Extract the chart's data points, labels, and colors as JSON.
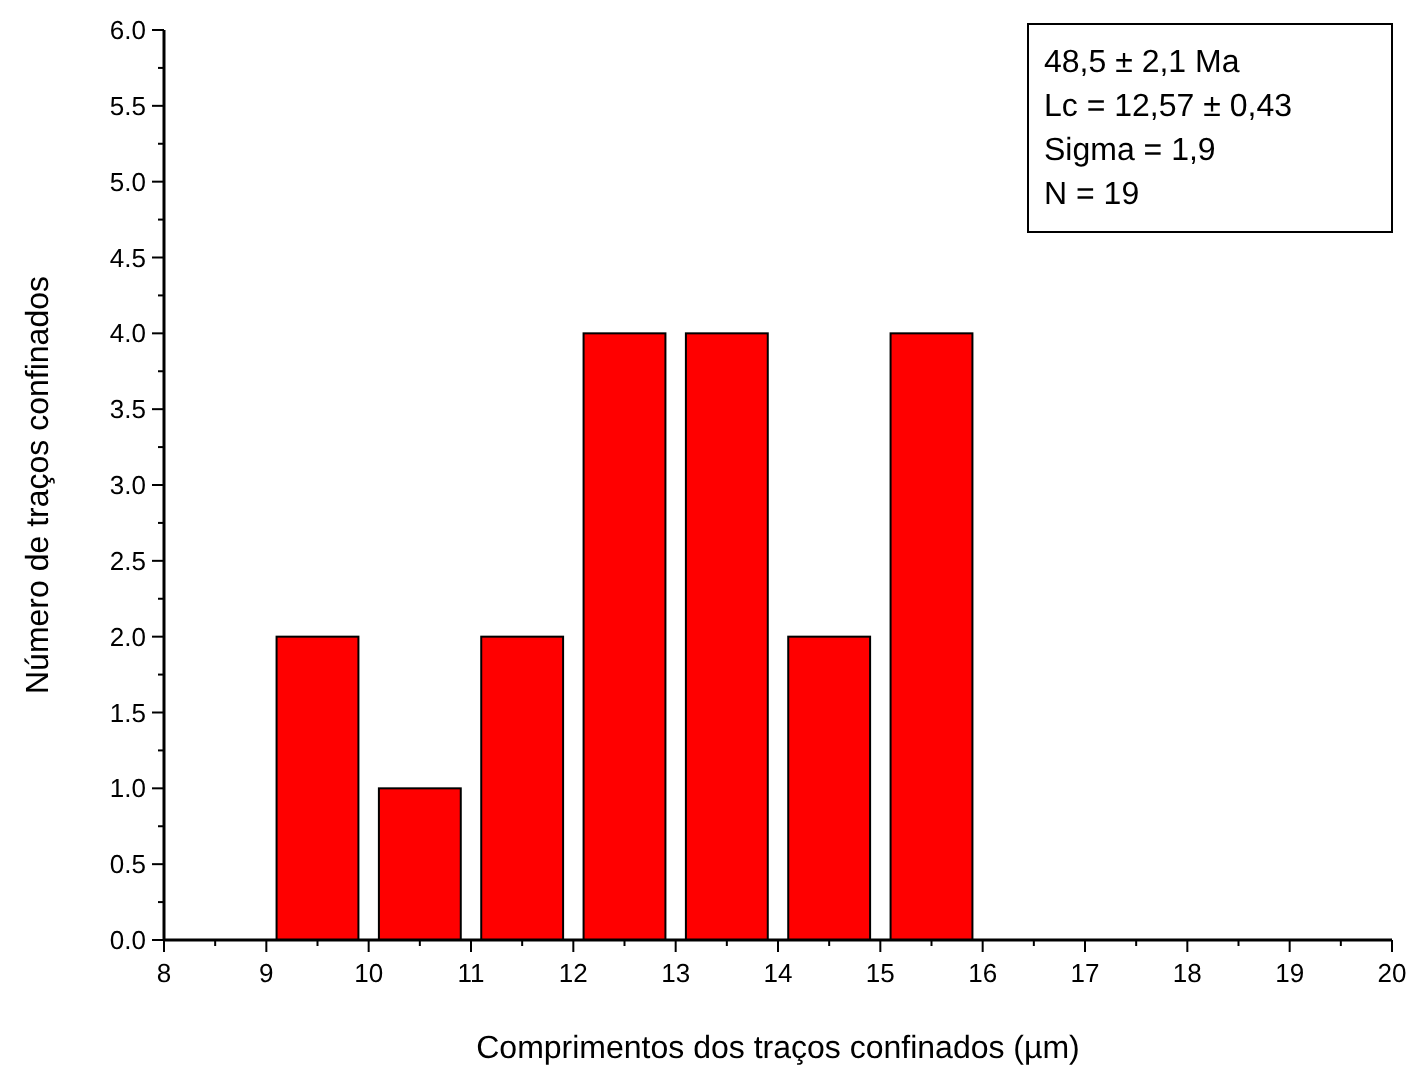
{
  "chart_data": {
    "type": "histogram",
    "xlabel": "Comprimentos dos traços confinados (µm)",
    "ylabel": "Número de traços confinados",
    "bins": [
      9,
      10,
      11,
      12,
      13,
      14,
      15,
      16
    ],
    "values": [
      2,
      1,
      2,
      4,
      4,
      2,
      4
    ],
    "color": "#ff0000",
    "xlim": [
      8,
      20
    ],
    "xticks": [
      8,
      9,
      10,
      11,
      12,
      13,
      14,
      15,
      16,
      17,
      18,
      19,
      20
    ],
    "ylim": [
      0,
      6
    ],
    "yticks": [
      {
        "value": 0,
        "label": "0.0"
      },
      {
        "value": 0.5,
        "label": "0.5"
      },
      {
        "value": 1,
        "label": "1.0"
      },
      {
        "value": 1.5,
        "label": "1.5"
      },
      {
        "value": 2,
        "label": "2.0"
      },
      {
        "value": 2.5,
        "label": "2.5"
      },
      {
        "value": 3,
        "label": "3.0"
      },
      {
        "value": 3.5,
        "label": "3.5"
      },
      {
        "value": 4,
        "label": "4.0"
      },
      {
        "value": 4.5,
        "label": "4.5"
      },
      {
        "value": 5,
        "label": "5.0"
      },
      {
        "value": 5.5,
        "label": "5.5"
      },
      {
        "value": 6,
        "label": "6.0"
      }
    ],
    "annotations": [
      "48,5 ± 2,1 Ma",
      "Lc = 12,57 ±  0,43",
      "Sigma = 1,9",
      "N = 19"
    ]
  }
}
